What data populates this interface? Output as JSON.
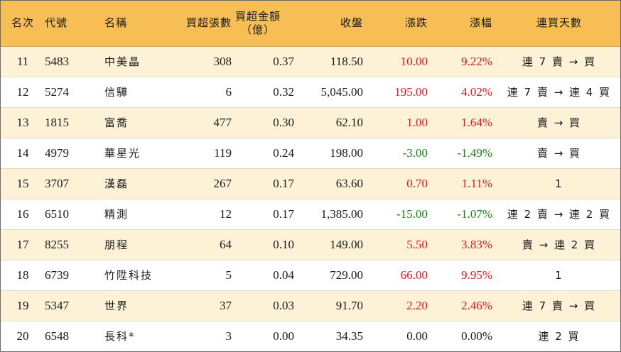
{
  "headers": {
    "rank": "名次",
    "code": "代號",
    "name": "名稱",
    "lots": "買超張數",
    "amount_line1": "買超金額",
    "amount_line2": "（億）",
    "close": "收盤",
    "change": "漲跌",
    "pct": "漲幅",
    "streak": "連買天數"
  },
  "colors": {
    "header_bg": "#f7be55",
    "stripe_bg": "#fdf1d6",
    "up": "#e8151b",
    "down": "#13870f"
  },
  "rows": [
    {
      "rank": "11",
      "code": "5483",
      "name": "中美晶",
      "lots": "308",
      "amount": "0.37",
      "close": "118.50",
      "change": "10.00",
      "pct": "9.22%",
      "dir": "up",
      "streak": "連 7 賣 → 買"
    },
    {
      "rank": "12",
      "code": "5274",
      "name": "信驊",
      "lots": "6",
      "amount": "0.32",
      "close": "5,045.00",
      "change": "195.00",
      "pct": "4.02%",
      "dir": "up",
      "streak": "連 7 賣 → 連 4 買"
    },
    {
      "rank": "13",
      "code": "1815",
      "name": "富喬",
      "lots": "477",
      "amount": "0.30",
      "close": "62.10",
      "change": "1.00",
      "pct": "1.64%",
      "dir": "up",
      "streak": "賣 → 買"
    },
    {
      "rank": "14",
      "code": "4979",
      "name": "華星光",
      "lots": "119",
      "amount": "0.24",
      "close": "198.00",
      "change": "-3.00",
      "pct": "-1.49%",
      "dir": "down",
      "streak": "賣 → 買"
    },
    {
      "rank": "15",
      "code": "3707",
      "name": "漢磊",
      "lots": "267",
      "amount": "0.17",
      "close": "63.60",
      "change": "0.70",
      "pct": "1.11%",
      "dir": "up",
      "streak": "1"
    },
    {
      "rank": "16",
      "code": "6510",
      "name": "精測",
      "lots": "12",
      "amount": "0.17",
      "close": "1,385.00",
      "change": "-15.00",
      "pct": "-1.07%",
      "dir": "down",
      "streak": "連 2 賣 → 連 2 買"
    },
    {
      "rank": "17",
      "code": "8255",
      "name": "朋程",
      "lots": "64",
      "amount": "0.10",
      "close": "149.00",
      "change": "5.50",
      "pct": "3.83%",
      "dir": "up",
      "streak": "賣 → 連 2 買"
    },
    {
      "rank": "18",
      "code": "6739",
      "name": "竹陞科技",
      "lots": "5",
      "amount": "0.04",
      "close": "729.00",
      "change": "66.00",
      "pct": "9.95%",
      "dir": "up",
      "streak": "1"
    },
    {
      "rank": "19",
      "code": "5347",
      "name": "世界",
      "lots": "37",
      "amount": "0.03",
      "close": "91.70",
      "change": "2.20",
      "pct": "2.46%",
      "dir": "up",
      "streak": "連 7 賣 → 買"
    },
    {
      "rank": "20",
      "code": "6548",
      "name": "長科*",
      "lots": "3",
      "amount": "0.00",
      "close": "34.35",
      "change": "0.00",
      "pct": "0.00%",
      "dir": "flat",
      "streak": "連 2 買"
    }
  ]
}
